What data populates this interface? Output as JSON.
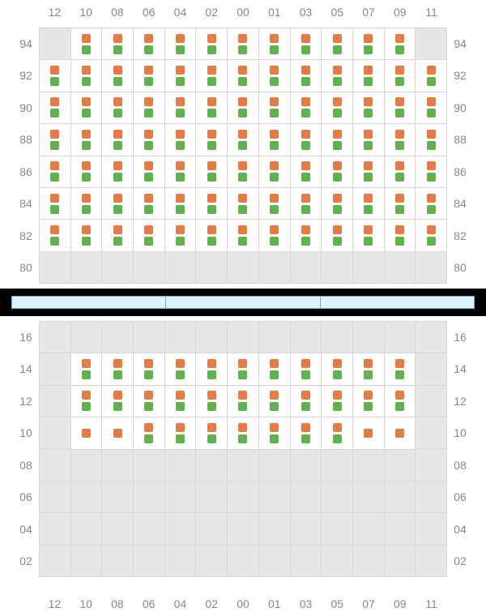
{
  "colors": {
    "orange": "#e77b43",
    "green": "#61b24e",
    "grid_border": "#d8d8d8",
    "inactive_bg": "#e6e6e6",
    "active_bg": "#ffffff",
    "label": "#888888",
    "black": "#000000",
    "blue_fill": "#e0f4fe",
    "blue_border": "#57b6e6"
  },
  "columns": [
    "12",
    "10",
    "08",
    "06",
    "04",
    "02",
    "00",
    "01",
    "03",
    "05",
    "07",
    "09",
    "11"
  ],
  "upper": {
    "row_labels": [
      "94",
      "92",
      "90",
      "88",
      "86",
      "84",
      "82",
      "80"
    ],
    "cells": [
      [
        {
          "a": false
        },
        {
          "a": true,
          "o": true,
          "g": true
        },
        {
          "a": true,
          "o": true,
          "g": true
        },
        {
          "a": true,
          "o": true,
          "g": true
        },
        {
          "a": true,
          "o": true,
          "g": true
        },
        {
          "a": true,
          "o": true,
          "g": true
        },
        {
          "a": true,
          "o": true,
          "g": true
        },
        {
          "a": true,
          "o": true,
          "g": true
        },
        {
          "a": true,
          "o": true,
          "g": true
        },
        {
          "a": true,
          "o": true,
          "g": true
        },
        {
          "a": true,
          "o": true,
          "g": true
        },
        {
          "a": true,
          "o": true,
          "g": true
        },
        {
          "a": false
        }
      ],
      [
        {
          "a": true,
          "o": true,
          "g": true
        },
        {
          "a": true,
          "o": true,
          "g": true
        },
        {
          "a": true,
          "o": true,
          "g": true
        },
        {
          "a": true,
          "o": true,
          "g": true
        },
        {
          "a": true,
          "o": true,
          "g": true
        },
        {
          "a": true,
          "o": true,
          "g": true
        },
        {
          "a": true,
          "o": true,
          "g": true
        },
        {
          "a": true,
          "o": true,
          "g": true
        },
        {
          "a": true,
          "o": true,
          "g": true
        },
        {
          "a": true,
          "o": true,
          "g": true
        },
        {
          "a": true,
          "o": true,
          "g": true
        },
        {
          "a": true,
          "o": true,
          "g": true
        },
        {
          "a": true,
          "o": true,
          "g": true
        }
      ],
      [
        {
          "a": true,
          "o": true,
          "g": true
        },
        {
          "a": true,
          "o": true,
          "g": true
        },
        {
          "a": true,
          "o": true,
          "g": true
        },
        {
          "a": true,
          "o": true,
          "g": true
        },
        {
          "a": true,
          "o": true,
          "g": true
        },
        {
          "a": true,
          "o": true,
          "g": true
        },
        {
          "a": true,
          "o": true,
          "g": true
        },
        {
          "a": true,
          "o": true,
          "g": true
        },
        {
          "a": true,
          "o": true,
          "g": true
        },
        {
          "a": true,
          "o": true,
          "g": true
        },
        {
          "a": true,
          "o": true,
          "g": true
        },
        {
          "a": true,
          "o": true,
          "g": true
        },
        {
          "a": true,
          "o": true,
          "g": true
        }
      ],
      [
        {
          "a": true,
          "o": true,
          "g": true
        },
        {
          "a": true,
          "o": true,
          "g": true
        },
        {
          "a": true,
          "o": true,
          "g": true
        },
        {
          "a": true,
          "o": true,
          "g": true
        },
        {
          "a": true,
          "o": true,
          "g": true
        },
        {
          "a": true,
          "o": true,
          "g": true
        },
        {
          "a": true,
          "o": true,
          "g": true
        },
        {
          "a": true,
          "o": true,
          "g": true
        },
        {
          "a": true,
          "o": true,
          "g": true
        },
        {
          "a": true,
          "o": true,
          "g": true
        },
        {
          "a": true,
          "o": true,
          "g": true
        },
        {
          "a": true,
          "o": true,
          "g": true
        },
        {
          "a": true,
          "o": true,
          "g": true
        }
      ],
      [
        {
          "a": true,
          "o": true,
          "g": true
        },
        {
          "a": true,
          "o": true,
          "g": true
        },
        {
          "a": true,
          "o": true,
          "g": true
        },
        {
          "a": true,
          "o": true,
          "g": true
        },
        {
          "a": true,
          "o": true,
          "g": true
        },
        {
          "a": true,
          "o": true,
          "g": true
        },
        {
          "a": true,
          "o": true,
          "g": true
        },
        {
          "a": true,
          "o": true,
          "g": true
        },
        {
          "a": true,
          "o": true,
          "g": true
        },
        {
          "a": true,
          "o": true,
          "g": true
        },
        {
          "a": true,
          "o": true,
          "g": true
        },
        {
          "a": true,
          "o": true,
          "g": true
        },
        {
          "a": true,
          "o": true,
          "g": true
        }
      ],
      [
        {
          "a": true,
          "o": true,
          "g": true
        },
        {
          "a": true,
          "o": true,
          "g": true
        },
        {
          "a": true,
          "o": true,
          "g": true
        },
        {
          "a": true,
          "o": true,
          "g": true
        },
        {
          "a": true,
          "o": true,
          "g": true
        },
        {
          "a": true,
          "o": true,
          "g": true
        },
        {
          "a": true,
          "o": true,
          "g": true
        },
        {
          "a": true,
          "o": true,
          "g": true
        },
        {
          "a": true,
          "o": true,
          "g": true
        },
        {
          "a": true,
          "o": true,
          "g": true
        },
        {
          "a": true,
          "o": true,
          "g": true
        },
        {
          "a": true,
          "o": true,
          "g": true
        },
        {
          "a": true,
          "o": true,
          "g": true
        }
      ],
      [
        {
          "a": true,
          "o": true,
          "g": true
        },
        {
          "a": true,
          "o": true,
          "g": true
        },
        {
          "a": true,
          "o": true,
          "g": true
        },
        {
          "a": true,
          "o": true,
          "g": true
        },
        {
          "a": true,
          "o": true,
          "g": true
        },
        {
          "a": true,
          "o": true,
          "g": true
        },
        {
          "a": true,
          "o": true,
          "g": true
        },
        {
          "a": true,
          "o": true,
          "g": true
        },
        {
          "a": true,
          "o": true,
          "g": true
        },
        {
          "a": true,
          "o": true,
          "g": true
        },
        {
          "a": true,
          "o": true,
          "g": true
        },
        {
          "a": true,
          "o": true,
          "g": true
        },
        {
          "a": true,
          "o": true,
          "g": true
        }
      ],
      [
        {
          "a": false
        },
        {
          "a": false
        },
        {
          "a": false
        },
        {
          "a": false
        },
        {
          "a": false
        },
        {
          "a": false
        },
        {
          "a": false
        },
        {
          "a": false
        },
        {
          "a": false
        },
        {
          "a": false
        },
        {
          "a": false
        },
        {
          "a": false
        },
        {
          "a": false
        }
      ]
    ]
  },
  "lower": {
    "row_labels": [
      "16",
      "14",
      "12",
      "10",
      "08",
      "06",
      "04",
      "02"
    ],
    "cells": [
      [
        {
          "a": false
        },
        {
          "a": false
        },
        {
          "a": false
        },
        {
          "a": false
        },
        {
          "a": false
        },
        {
          "a": false
        },
        {
          "a": false
        },
        {
          "a": false
        },
        {
          "a": false
        },
        {
          "a": false
        },
        {
          "a": false
        },
        {
          "a": false
        },
        {
          "a": false
        }
      ],
      [
        {
          "a": false
        },
        {
          "a": true,
          "o": true,
          "g": true
        },
        {
          "a": true,
          "o": true,
          "g": true
        },
        {
          "a": true,
          "o": true,
          "g": true
        },
        {
          "a": true,
          "o": true,
          "g": true
        },
        {
          "a": true,
          "o": true,
          "g": true
        },
        {
          "a": true,
          "o": true,
          "g": true
        },
        {
          "a": true,
          "o": true,
          "g": true
        },
        {
          "a": true,
          "o": true,
          "g": true
        },
        {
          "a": true,
          "o": true,
          "g": true
        },
        {
          "a": true,
          "o": true,
          "g": true
        },
        {
          "a": true,
          "o": true,
          "g": true
        },
        {
          "a": false
        }
      ],
      [
        {
          "a": false
        },
        {
          "a": true,
          "o": true,
          "g": true
        },
        {
          "a": true,
          "o": true,
          "g": true
        },
        {
          "a": true,
          "o": true,
          "g": true
        },
        {
          "a": true,
          "o": true,
          "g": true
        },
        {
          "a": true,
          "o": true,
          "g": true
        },
        {
          "a": true,
          "o": true,
          "g": true
        },
        {
          "a": true,
          "o": true,
          "g": true
        },
        {
          "a": true,
          "o": true,
          "g": true
        },
        {
          "a": true,
          "o": true,
          "g": true
        },
        {
          "a": true,
          "o": true,
          "g": true
        },
        {
          "a": true,
          "o": true,
          "g": true
        },
        {
          "a": false
        }
      ],
      [
        {
          "a": false
        },
        {
          "a": true,
          "o": true,
          "g": false
        },
        {
          "a": true,
          "o": true,
          "g": false
        },
        {
          "a": true,
          "o": true,
          "g": true
        },
        {
          "a": true,
          "o": true,
          "g": true
        },
        {
          "a": true,
          "o": true,
          "g": true
        },
        {
          "a": true,
          "o": true,
          "g": true
        },
        {
          "a": true,
          "o": true,
          "g": true
        },
        {
          "a": true,
          "o": true,
          "g": true
        },
        {
          "a": true,
          "o": true,
          "g": true
        },
        {
          "a": true,
          "o": true,
          "g": false
        },
        {
          "a": true,
          "o": true,
          "g": false
        },
        {
          "a": false
        }
      ],
      [
        {
          "a": false
        },
        {
          "a": false
        },
        {
          "a": false
        },
        {
          "a": false
        },
        {
          "a": false
        },
        {
          "a": false
        },
        {
          "a": false
        },
        {
          "a": false
        },
        {
          "a": false
        },
        {
          "a": false
        },
        {
          "a": false
        },
        {
          "a": false
        },
        {
          "a": false
        }
      ],
      [
        {
          "a": false
        },
        {
          "a": false
        },
        {
          "a": false
        },
        {
          "a": false
        },
        {
          "a": false
        },
        {
          "a": false
        },
        {
          "a": false
        },
        {
          "a": false
        },
        {
          "a": false
        },
        {
          "a": false
        },
        {
          "a": false
        },
        {
          "a": false
        },
        {
          "a": false
        }
      ],
      [
        {
          "a": false
        },
        {
          "a": false
        },
        {
          "a": false
        },
        {
          "a": false
        },
        {
          "a": false
        },
        {
          "a": false
        },
        {
          "a": false
        },
        {
          "a": false
        },
        {
          "a": false
        },
        {
          "a": false
        },
        {
          "a": false
        },
        {
          "a": false
        },
        {
          "a": false
        }
      ],
      [
        {
          "a": false
        },
        {
          "a": false
        },
        {
          "a": false
        },
        {
          "a": false
        },
        {
          "a": false
        },
        {
          "a": false
        },
        {
          "a": false
        },
        {
          "a": false
        },
        {
          "a": false
        },
        {
          "a": false
        },
        {
          "a": false
        },
        {
          "a": false
        },
        {
          "a": false
        }
      ]
    ]
  },
  "divider_segments": 3
}
